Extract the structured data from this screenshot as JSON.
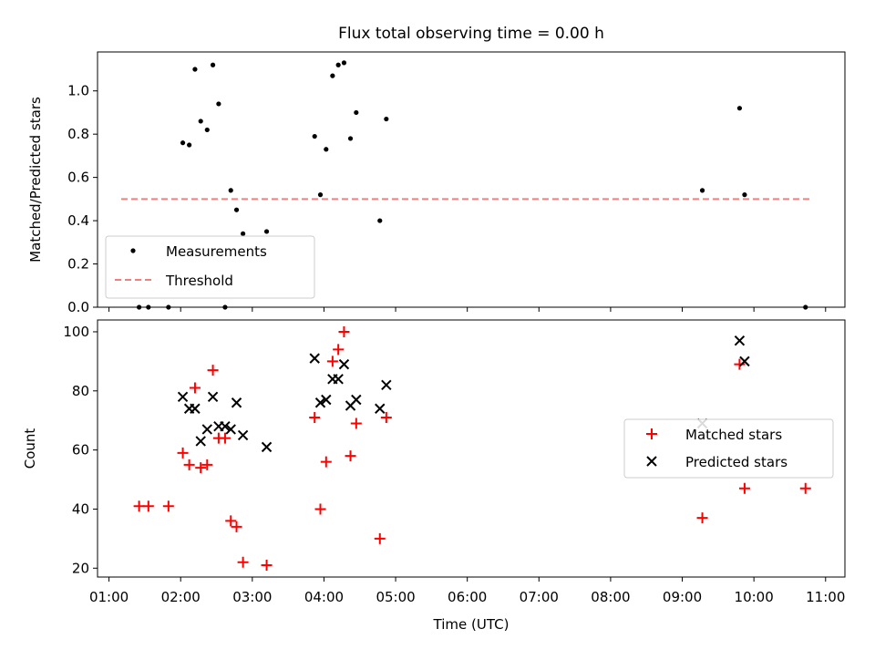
{
  "title": "Flux total observing time = 0.00 h",
  "chart_data": [
    {
      "type": "scatter",
      "ylabel": "Matched/Predicted stars",
      "xlim": [
        0.84,
        11.27
      ],
      "ylim": [
        0,
        1.18
      ],
      "yticks": [
        0.0,
        0.2,
        0.4,
        0.6,
        0.8,
        1.0
      ],
      "ytick_labels": [
        "0.0",
        "0.2",
        "0.4",
        "0.6",
        "0.8",
        "1.0"
      ],
      "xticks": [
        1,
        2,
        3,
        4,
        5,
        6,
        7,
        8,
        9,
        10,
        11
      ],
      "legend": {
        "position": "lower-left",
        "items": [
          "Measurements",
          "Threshold"
        ]
      },
      "threshold": {
        "name": "Threshold",
        "y": 0.5,
        "x_range": [
          1.17,
          10.8
        ],
        "color": "#f08080"
      },
      "series": [
        {
          "name": "Measurements",
          "color": "#000000",
          "x": [
            1.42,
            1.55,
            1.83,
            2.03,
            2.12,
            2.2,
            2.28,
            2.37,
            2.45,
            2.53,
            2.62,
            2.7,
            2.78,
            2.87,
            3.2,
            3.87,
            3.95,
            4.03,
            4.12,
            4.2,
            4.28,
            4.37,
            4.45,
            4.78,
            4.87,
            9.28,
            9.8,
            9.87,
            10.72
          ],
          "y": [
            0.0,
            0.0,
            0.0,
            0.76,
            0.75,
            1.1,
            0.86,
            0.82,
            1.12,
            0.94,
            0.0,
            0.54,
            0.45,
            0.34,
            0.35,
            0.79,
            0.52,
            0.73,
            1.07,
            1.12,
            1.13,
            0.78,
            0.9,
            0.4,
            0.87,
            0.54,
            0.92,
            0.52,
            0.0
          ]
        }
      ]
    },
    {
      "type": "scatter",
      "xlabel": "Time (UTC)",
      "ylabel": "Count",
      "xlim": [
        0.84,
        11.27
      ],
      "ylim": [
        17,
        104
      ],
      "yticks": [
        20,
        40,
        60,
        80,
        100
      ],
      "ytick_labels": [
        "20",
        "40",
        "60",
        "80",
        "100"
      ],
      "xticks": [
        1,
        2,
        3,
        4,
        5,
        6,
        7,
        8,
        9,
        10,
        11
      ],
      "xtick_labels": [
        "01:00",
        "02:00",
        "03:00",
        "04:00",
        "05:00",
        "06:00",
        "07:00",
        "08:00",
        "09:00",
        "10:00",
        "11:00"
      ],
      "legend": {
        "position": "center-right",
        "items": [
          "Matched stars",
          "Predicted stars"
        ]
      },
      "series": [
        {
          "name": "Matched stars",
          "color": "#ff0000",
          "x": [
            1.42,
            1.55,
            1.83,
            2.03,
            2.12,
            2.2,
            2.28,
            2.37,
            2.45,
            2.53,
            2.62,
            2.7,
            2.78,
            2.87,
            3.2,
            3.87,
            3.95,
            4.03,
            4.12,
            4.2,
            4.28,
            4.37,
            4.45,
            4.78,
            4.87,
            9.28,
            9.8,
            9.87,
            10.72
          ],
          "y": [
            41,
            41,
            41,
            59,
            55,
            81,
            54,
            55,
            87,
            64,
            64,
            36,
            34,
            22,
            21,
            71,
            40,
            56,
            90,
            94,
            100,
            58,
            69,
            30,
            71,
            37,
            89,
            47,
            47
          ]
        },
        {
          "name": "Predicted stars",
          "color": "#000000",
          "x": [
            2.03,
            2.12,
            2.2,
            2.28,
            2.37,
            2.45,
            2.53,
            2.62,
            2.7,
            2.78,
            2.87,
            3.2,
            3.87,
            3.95,
            4.03,
            4.12,
            4.2,
            4.28,
            4.37,
            4.45,
            4.78,
            4.87,
            9.28,
            9.8,
            9.87
          ],
          "y": [
            78,
            74,
            74,
            63,
            67,
            78,
            68,
            68,
            67,
            76,
            65,
            61,
            91,
            76,
            77,
            84,
            84,
            89,
            75,
            77,
            74,
            82,
            69,
            97,
            90
          ]
        }
      ]
    }
  ]
}
